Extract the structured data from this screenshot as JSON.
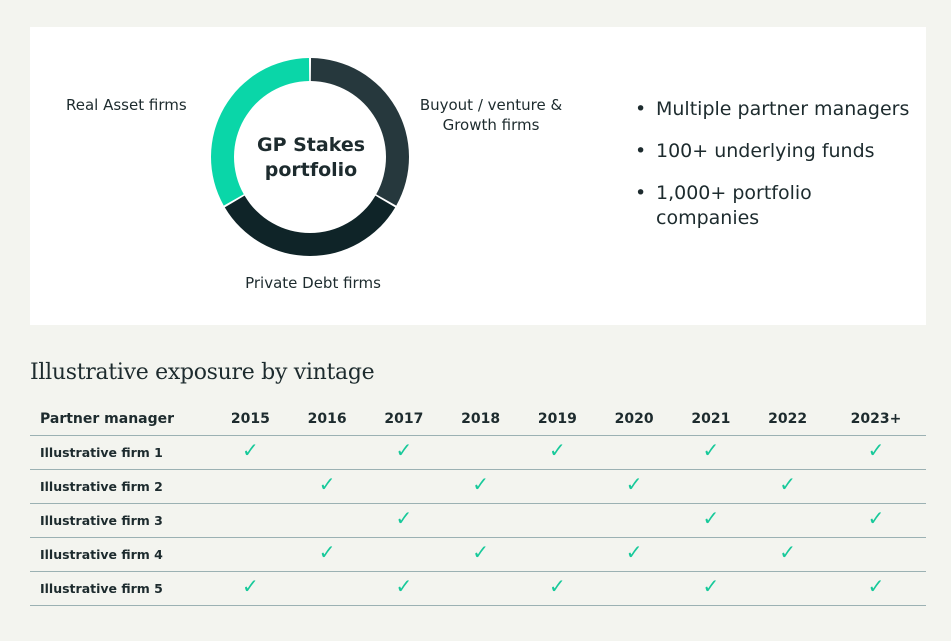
{
  "colors": {
    "real_asset": "#0ad6a8",
    "buyout": "#26383d",
    "private_debt": "#0f2428",
    "check": "#17c99a"
  },
  "chart_data": [
    {
      "type": "pie",
      "title": "GP Stakes portfolio",
      "series": [
        {
          "label": "Buyout / venture & Growth firms",
          "value": 33.3,
          "color": "#26383d"
        },
        {
          "label": "Private Debt firms",
          "value": 33.3,
          "color": "#0f2428"
        },
        {
          "label": "Real Asset firms",
          "value": 33.3,
          "color": "#0ad6a8"
        }
      ]
    },
    {
      "type": "table",
      "title": "Illustrative exposure by vintage",
      "columns": [
        "Partner manager",
        "2015",
        "2016",
        "2017",
        "2018",
        "2019",
        "2020",
        "2021",
        "2022",
        "2023+"
      ],
      "rows": [
        {
          "name": "Illustrative firm 1",
          "checks": [
            1,
            0,
            1,
            0,
            1,
            0,
            1,
            0,
            1
          ]
        },
        {
          "name": "Illustrative firm 2",
          "checks": [
            0,
            1,
            0,
            1,
            0,
            1,
            0,
            1,
            0
          ]
        },
        {
          "name": "Illustrative firm 3",
          "checks": [
            0,
            0,
            1,
            0,
            0,
            0,
            1,
            0,
            1
          ]
        },
        {
          "name": "Illustrative firm 4",
          "checks": [
            0,
            1,
            0,
            1,
            0,
            1,
            0,
            1,
            0
          ]
        },
        {
          "name": "Illustrative firm 5",
          "checks": [
            1,
            0,
            1,
            0,
            1,
            0,
            1,
            0,
            1
          ]
        }
      ]
    }
  ],
  "donut": {
    "center_line1": "GP Stakes",
    "center_line2": "portfolio",
    "label_real": "Real Asset firms",
    "label_buyout_line1": "Buyout / venture &",
    "label_buyout_line2": "Growth firms",
    "label_debt": "Private Debt firms"
  },
  "bullets": [
    "Multiple partner managers",
    "100+ underlying funds",
    "1,000+ portfolio companies"
  ],
  "bullet_glyph": "•",
  "check_glyph": "✓",
  "section_title": "Illustrative exposure by vintage"
}
